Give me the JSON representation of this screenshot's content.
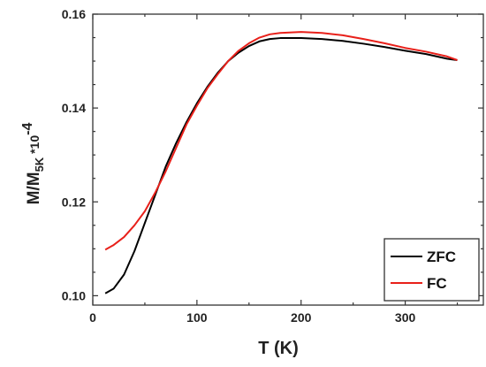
{
  "chart_data": {
    "type": "line",
    "xlabel": "T (K)",
    "ylabel": {
      "main": "M/M",
      "subscript": "5K",
      "suffix": " *10",
      "superscript": "-4"
    },
    "xlim": [
      0,
      375
    ],
    "ylim": [
      0.098,
      0.16
    ],
    "x_ticks": [
      0,
      100,
      200,
      300
    ],
    "x_tick_labels": [
      "0",
      "100",
      "200",
      "300"
    ],
    "y_ticks": [
      0.1,
      0.12,
      0.14,
      0.16
    ],
    "y_tick_labels": [
      "0.10",
      "0.12",
      "0.14",
      "0.16"
    ],
    "grid": false,
    "legend_position": "bottom-right",
    "series": [
      {
        "name": "ZFC",
        "color": "#000000",
        "points": [
          [
            12,
            0.1005
          ],
          [
            20,
            0.1015
          ],
          [
            30,
            0.1045
          ],
          [
            40,
            0.1095
          ],
          [
            50,
            0.1155
          ],
          [
            60,
            0.1215
          ],
          [
            70,
            0.1275
          ],
          [
            80,
            0.1325
          ],
          [
            90,
            0.137
          ],
          [
            100,
            0.141
          ],
          [
            110,
            0.1445
          ],
          [
            120,
            0.1475
          ],
          [
            130,
            0.15
          ],
          [
            140,
            0.1518
          ],
          [
            150,
            0.1532
          ],
          [
            160,
            0.1542
          ],
          [
            170,
            0.1547
          ],
          [
            180,
            0.1549
          ],
          [
            200,
            0.1549
          ],
          [
            220,
            0.1547
          ],
          [
            240,
            0.1543
          ],
          [
            260,
            0.1537
          ],
          [
            280,
            0.153
          ],
          [
            300,
            0.1522
          ],
          [
            320,
            0.1515
          ],
          [
            340,
            0.1505
          ],
          [
            350,
            0.1502
          ]
        ]
      },
      {
        "name": "FC",
        "color": "#e8201a",
        "points": [
          [
            12,
            0.1098
          ],
          [
            20,
            0.1108
          ],
          [
            30,
            0.1125
          ],
          [
            40,
            0.115
          ],
          [
            50,
            0.118
          ],
          [
            60,
            0.122
          ],
          [
            70,
            0.1265
          ],
          [
            80,
            0.1315
          ],
          [
            90,
            0.1365
          ],
          [
            100,
            0.1405
          ],
          [
            110,
            0.1442
          ],
          [
            120,
            0.1472
          ],
          [
            130,
            0.15
          ],
          [
            140,
            0.1522
          ],
          [
            150,
            0.1538
          ],
          [
            160,
            0.155
          ],
          [
            170,
            0.1557
          ],
          [
            180,
            0.156
          ],
          [
            200,
            0.1562
          ],
          [
            220,
            0.156
          ],
          [
            240,
            0.1555
          ],
          [
            260,
            0.1547
          ],
          [
            280,
            0.1538
          ],
          [
            300,
            0.1528
          ],
          [
            320,
            0.152
          ],
          [
            340,
            0.151
          ],
          [
            350,
            0.1502
          ]
        ]
      }
    ]
  }
}
